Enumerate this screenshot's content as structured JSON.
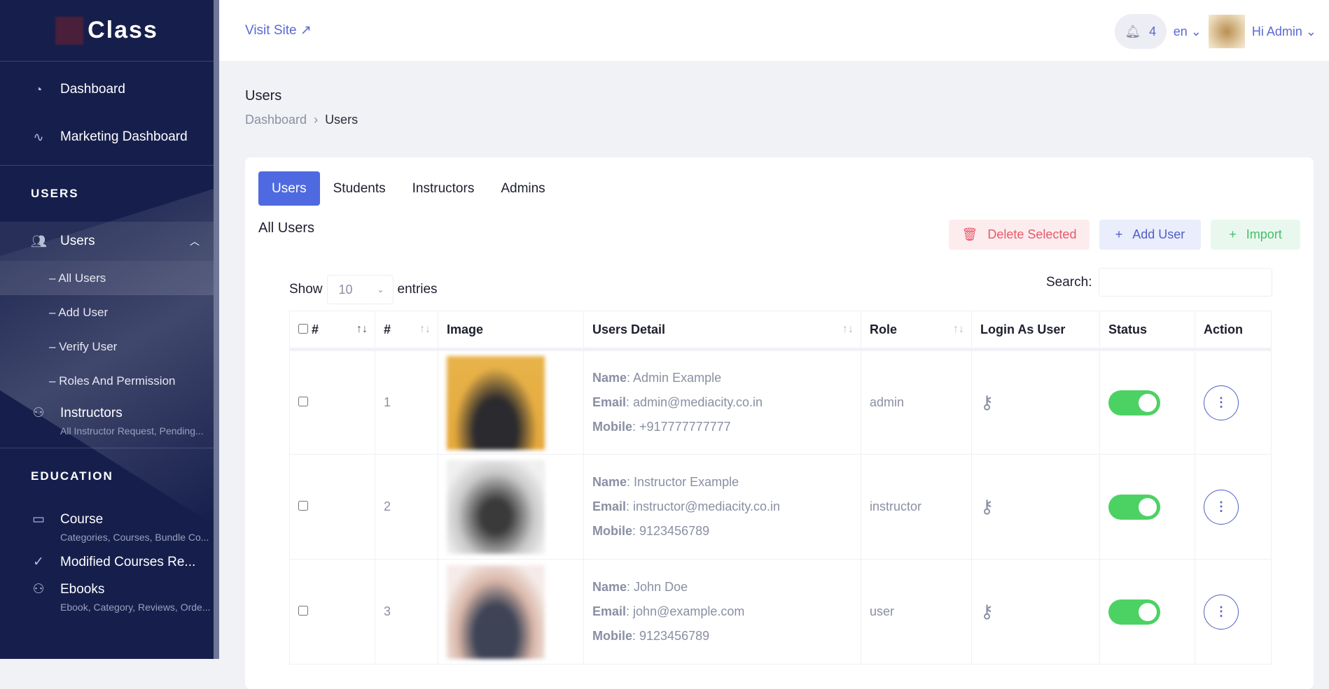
{
  "sidebar": {
    "brand": "Class",
    "top_items": [
      {
        "label": "Dashboard",
        "icon": "pie-chart-icon"
      },
      {
        "label": "Marketing Dashboard",
        "icon": "activity-icon"
      }
    ],
    "users_section": "USERS",
    "users_menu": {
      "label": "Users",
      "sub": [
        "– All Users",
        "– Add User",
        "– Verify User",
        "– Roles And Permission"
      ]
    },
    "instructors": {
      "label": "Instructors",
      "desc": "All Instructor Request, Pending..."
    },
    "education_section": "EDUCATION",
    "course": {
      "label": "Course",
      "desc": "Categories, Courses, Bundle Co..."
    },
    "modified": {
      "label": "Modified Courses Re..."
    },
    "ebooks": {
      "label": "Ebooks",
      "desc": "Ebook, Category, Reviews, Orde..."
    }
  },
  "header": {
    "visit_site": "Visit Site",
    "notifications": "4",
    "lang": "en",
    "greeting": "Hi Admin"
  },
  "page": {
    "title": "Users",
    "breadcrumb": [
      "Dashboard",
      "Users"
    ]
  },
  "tabs": [
    "Users",
    "Students",
    "Instructors",
    "Admins"
  ],
  "section_title": "All Users",
  "buttons": {
    "delete": "Delete Selected",
    "add": "Add User",
    "import": "Import"
  },
  "table_controls": {
    "show": "Show",
    "entries_value": "10",
    "entries": "entries",
    "search_label": "Search:",
    "search_value": ""
  },
  "columns": [
    "#",
    "#",
    "Image",
    "Users Detail",
    "Role",
    "Login As User",
    "Status",
    "Action"
  ],
  "labels": {
    "name": "Name",
    "email": "Email",
    "mobile": "Mobile"
  },
  "rows": [
    {
      "num": "1",
      "name": "Admin Example",
      "email": "admin@mediacity.co.in",
      "mobile": "+917777777777",
      "role": "admin",
      "status": true
    },
    {
      "num": "2",
      "name": "Instructor Example",
      "email": "instructor@mediacity.co.in",
      "mobile": "9123456789",
      "role": "instructor",
      "status": true
    },
    {
      "num": "3",
      "name": "John Doe",
      "email": "john@example.com",
      "mobile": "9123456789",
      "role": "user",
      "status": true
    }
  ],
  "colors": {
    "sidebar": "#161f4c",
    "accent": "#4f6ae0",
    "toggle_on": "#4cd263",
    "danger": "#e55a6a",
    "success": "#43c06a"
  }
}
